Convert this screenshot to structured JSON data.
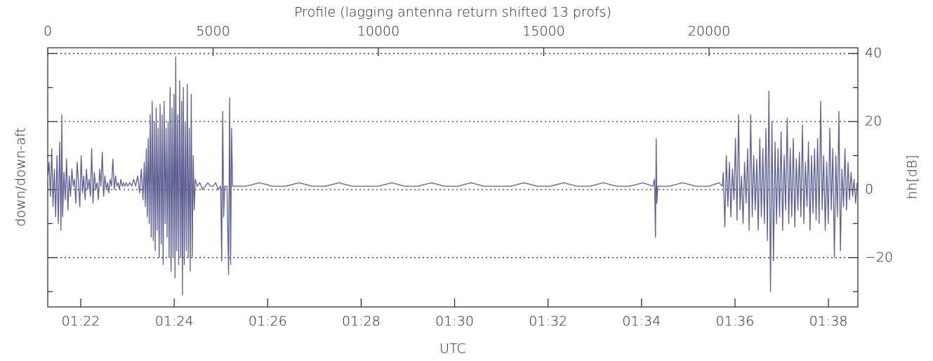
{
  "chart_data": {
    "type": "line",
    "title": "Profile (lagging antenna return shifted 13 profs)",
    "x_label": "UTC",
    "y_label": "down/down-aft",
    "y2_label": "hh[dB]",
    "xlim": [
      0,
      24500
    ],
    "xticks": [
      0,
      5000,
      10000,
      15000,
      20000
    ],
    "x2lim": [
      4877.6,
      5917.8
    ],
    "x2ticks": [
      {
        "value": 4920,
        "label": "01:22"
      },
      {
        "value": 5040,
        "label": "01:24"
      },
      {
        "value": 5160,
        "label": "01:26"
      },
      {
        "value": 5280,
        "label": "01:28"
      },
      {
        "value": 5400,
        "label": "01:30"
      },
      {
        "value": 5520,
        "label": "01:32"
      },
      {
        "value": 5640,
        "label": "01:34"
      },
      {
        "value": 5760,
        "label": "01:36"
      },
      {
        "value": 5880,
        "label": "01:38"
      }
    ],
    "ylim": [
      -34.5,
      41.7
    ],
    "yticks": [
      {
        "value": -20,
        "label": "−20"
      },
      0,
      20,
      40
    ],
    "yminorticks": [
      -30,
      -10,
      10,
      30
    ],
    "grid": true,
    "x": [
      0,
      40,
      80,
      120,
      160,
      200,
      240,
      280,
      320,
      360,
      400,
      425,
      450,
      490,
      530,
      570,
      610,
      650,
      690,
      730,
      770,
      810,
      850,
      890,
      930,
      970,
      1010,
      1050,
      1090,
      1130,
      1170,
      1210,
      1250,
      1290,
      1330,
      1370,
      1410,
      1450,
      1490,
      1530,
      1570,
      1610,
      1650,
      1690,
      1730,
      1770,
      1810,
      1850,
      1890,
      1930,
      1970,
      2010,
      2050,
      2090,
      2130,
      2170,
      2210,
      2250,
      2290,
      2330,
      2370,
      2420,
      2480,
      2540,
      2600,
      2660,
      2720,
      2780,
      2830,
      2880,
      2920,
      2950,
      2980,
      3010,
      3040,
      3070,
      3100,
      3130,
      3160,
      3190,
      3220,
      3250,
      3280,
      3310,
      3340,
      3370,
      3400,
      3430,
      3460,
      3490,
      3520,
      3550,
      3580,
      3610,
      3640,
      3670,
      3700,
      3730,
      3760,
      3790,
      3820,
      3850,
      3870,
      3900,
      3930,
      3960,
      3990,
      4020,
      4050,
      4075,
      4100,
      4130,
      4160,
      4190,
      4220,
      4250,
      4280,
      4310,
      4340,
      4370,
      4400,
      4430,
      4460,
      4520,
      4600,
      4680,
      4760,
      4840,
      4920,
      5000,
      5080,
      5160,
      5230,
      5260,
      5290,
      5320,
      5350,
      5420,
      5470,
      5500,
      5530,
      5560,
      5590,
      6000,
      6400,
      6800,
      7200,
      7600,
      8000,
      8400,
      8800,
      9200,
      9600,
      10000,
      10400,
      10800,
      11200,
      11600,
      12000,
      12400,
      12800,
      13200,
      13600,
      14000,
      14400,
      14800,
      15200,
      15600,
      16000,
      16400,
      16800,
      17200,
      17600,
      18000,
      18300,
      18350,
      18380,
      18400,
      18420,
      18450,
      18800,
      19200,
      19600,
      20000,
      20300,
      20400,
      20430,
      20476,
      20522,
      20568,
      20614,
      20660,
      20706,
      20752,
      20798,
      20844,
      20890,
      20936,
      20982,
      21028,
      21074,
      21120,
      21166,
      21212,
      21258,
      21304,
      21350,
      21396,
      21442,
      21488,
      21534,
      21580,
      21626,
      21672,
      21718,
      21764,
      21810,
      21856,
      21902,
      21948,
      21994,
      22040,
      22086,
      22132,
      22178,
      22224,
      22270,
      22316,
      22362,
      22408,
      22454,
      22500,
      22546,
      22592,
      22638,
      22684,
      22730,
      22776,
      22822,
      22868,
      22914,
      22960,
      23006,
      23052,
      23098,
      23144,
      23190,
      23236,
      23282,
      23328,
      23374,
      23420,
      23466,
      23512,
      23558,
      23604,
      23650,
      23696,
      23742,
      23788,
      23834,
      23880,
      23926,
      23972,
      24018,
      24064,
      24110,
      24156,
      24202,
      24248,
      24294,
      24340,
      24386,
      24432,
      24478
    ],
    "series": [
      {
        "color": "#5b5e92",
        "values": [
          3,
          8,
          -2,
          12,
          -5,
          6,
          -8,
          10,
          -10,
          14,
          -12,
          22,
          -8,
          5,
          -3,
          9,
          -6,
          4,
          -2,
          6,
          1,
          3,
          -4,
          8,
          2,
          -5,
          10,
          -1,
          4,
          -3,
          6,
          0,
          3,
          -2,
          12,
          -4,
          5,
          0,
          2,
          -3,
          6,
          1,
          11,
          -2,
          4,
          0,
          2,
          -1,
          3,
          1,
          9,
          0,
          4,
          1,
          2,
          0,
          3,
          1,
          2,
          1,
          2,
          1,
          2,
          1,
          3,
          1,
          4,
          -1,
          6,
          -3,
          8,
          -5,
          12,
          -8,
          15,
          -10,
          22,
          -14,
          26,
          -15,
          20,
          -18,
          24,
          -12,
          18,
          -20,
          25,
          -16,
          22,
          -22,
          26,
          -10,
          18,
          -14,
          20,
          -20,
          30,
          -24,
          24,
          -20,
          28,
          -26,
          39,
          -18,
          22,
          -22,
          32,
          -20,
          26,
          -31,
          30,
          -22,
          20,
          -18,
          31,
          -20,
          18,
          -24,
          28,
          -20,
          10,
          -6,
          3,
          1,
          2,
          0,
          1,
          2,
          1,
          1,
          2,
          0,
          1,
          -21,
          23,
          -8,
          1,
          1,
          -25,
          27,
          -22,
          18,
          1,
          1,
          2,
          1,
          1,
          2,
          1,
          1,
          2,
          1,
          1,
          1,
          2,
          1,
          1,
          2,
          1,
          1,
          2,
          1,
          1,
          1,
          2,
          1,
          1,
          2,
          1,
          1,
          2,
          1,
          1,
          2,
          1,
          3,
          -14,
          15,
          -4,
          1,
          1,
          2,
          1,
          1,
          2,
          1,
          5,
          -11,
          10,
          -5,
          8,
          -8,
          6,
          -3,
          15,
          -9,
          22,
          -6,
          4,
          -10,
          8,
          -4,
          12,
          -12,
          22,
          -8,
          10,
          -6,
          9,
          -12,
          15,
          -8,
          12,
          -10,
          18,
          -15,
          29,
          -30,
          20,
          -21,
          14,
          -10,
          12,
          -8,
          17,
          -12,
          10,
          -6,
          21,
          -10,
          12,
          -8,
          15,
          -11,
          9,
          -6,
          11,
          -8,
          19,
          -10,
          8,
          -5,
          14,
          -12,
          10,
          -7,
          12,
          -9,
          15,
          -10,
          26,
          -6,
          10,
          -12,
          8,
          -10,
          18,
          -6,
          12,
          -20,
          10,
          -8,
          23,
          -18,
          6,
          -5,
          12,
          -6,
          8,
          -3,
          5,
          -2,
          3,
          -4,
          2
        ]
      }
    ]
  }
}
